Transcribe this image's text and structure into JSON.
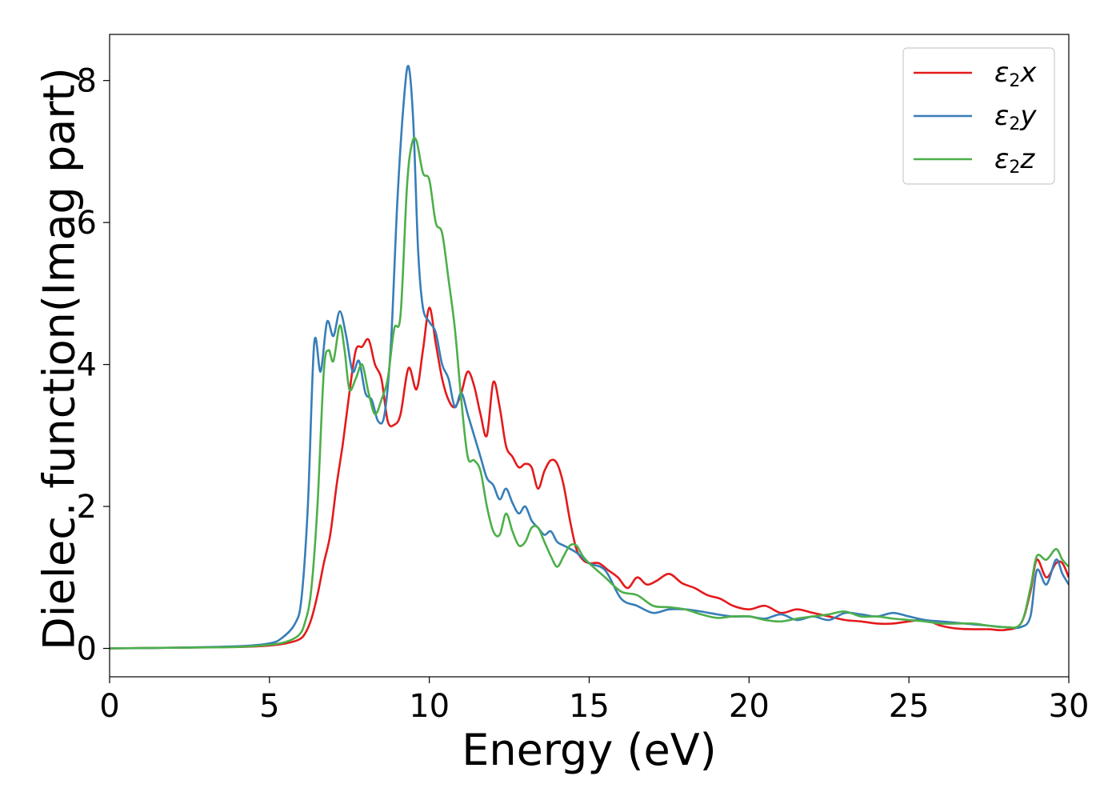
{
  "chart_data": {
    "type": "line",
    "xlabel": "Energy (eV)",
    "ylabel": "Dielec. function(Imag part)",
    "xlim": [
      0,
      30
    ],
    "ylim": [
      -0.4,
      8.65
    ],
    "xticks": [
      0,
      5,
      10,
      15,
      20,
      25,
      30
    ],
    "xtick_labels": [
      "0",
      "5",
      "10",
      "15",
      "20",
      "25",
      "30"
    ],
    "yticks": [
      0,
      2,
      4,
      6,
      8
    ],
    "ytick_labels": [
      "0",
      "2",
      "4",
      "6",
      "8"
    ],
    "grid": false,
    "legend_position": "top-right",
    "series": [
      {
        "name": "ε2x",
        "legend": {
          "base": "ε",
          "sub": "2",
          "var": "x"
        },
        "color": "#e41a1c",
        "x": [
          0,
          2,
          4,
          5,
          5.5,
          5.9,
          6.1,
          6.3,
          6.5,
          6.7,
          6.9,
          7.1,
          7.3,
          7.5,
          7.7,
          7.9,
          8.1,
          8.3,
          8.5,
          8.7,
          8.9,
          9.1,
          9.35,
          9.6,
          9.8,
          10.0,
          10.2,
          10.4,
          10.6,
          10.8,
          11.0,
          11.2,
          11.4,
          11.6,
          11.8,
          12.0,
          12.2,
          12.4,
          12.6,
          12.8,
          13.0,
          13.2,
          13.4,
          13.6,
          13.8,
          14.0,
          14.2,
          14.4,
          14.6,
          14.8,
          15.0,
          15.3,
          15.6,
          15.9,
          16.2,
          16.5,
          16.8,
          17.1,
          17.5,
          17.9,
          18.3,
          18.7,
          19.1,
          19.5,
          20.0,
          20.5,
          21.0,
          21.5,
          22.0,
          22.5,
          23.0,
          23.5,
          24.0,
          24.5,
          25.0,
          25.5,
          26.0,
          26.5,
          27.0,
          27.5,
          28.0,
          28.5,
          28.8,
          29.0,
          29.3,
          29.6,
          29.8,
          30.0
        ],
        "values": [
          0,
          0.01,
          0.02,
          0.04,
          0.07,
          0.12,
          0.2,
          0.4,
          0.75,
          1.2,
          1.6,
          2.3,
          2.9,
          3.6,
          4.2,
          4.25,
          4.35,
          4.0,
          3.8,
          3.2,
          3.15,
          3.3,
          3.95,
          3.65,
          4.2,
          4.8,
          4.3,
          3.8,
          3.5,
          3.4,
          3.6,
          3.9,
          3.7,
          3.3,
          3.0,
          3.75,
          3.4,
          2.85,
          2.7,
          2.55,
          2.6,
          2.55,
          2.25,
          2.5,
          2.65,
          2.6,
          2.3,
          1.8,
          1.4,
          1.25,
          1.2,
          1.2,
          1.1,
          1.0,
          0.85,
          1.0,
          0.9,
          0.95,
          1.05,
          0.92,
          0.85,
          0.75,
          0.7,
          0.6,
          0.55,
          0.6,
          0.5,
          0.55,
          0.5,
          0.45,
          0.4,
          0.38,
          0.35,
          0.35,
          0.38,
          0.4,
          0.32,
          0.28,
          0.27,
          0.27,
          0.26,
          0.35,
          0.8,
          1.25,
          1.0,
          1.2,
          1.2,
          1.0
        ]
      },
      {
        "name": "ε2y",
        "legend": {
          "base": "ε",
          "sub": "2",
          "var": "y"
        },
        "color": "#377eb8",
        "x": [
          0,
          2,
          4,
          5,
          5.4,
          5.8,
          6.0,
          6.2,
          6.4,
          6.6,
          6.8,
          7.0,
          7.2,
          7.4,
          7.6,
          7.8,
          8.0,
          8.2,
          8.4,
          8.6,
          8.8,
          9.0,
          9.2,
          9.35,
          9.5,
          9.65,
          9.8,
          10.0,
          10.2,
          10.4,
          10.6,
          10.8,
          11.0,
          11.2,
          11.4,
          11.6,
          11.8,
          12.0,
          12.2,
          12.4,
          12.6,
          12.8,
          13.0,
          13.2,
          13.4,
          13.6,
          13.8,
          14.0,
          14.2,
          14.6,
          15.0,
          15.5,
          16.0,
          16.5,
          17.0,
          17.5,
          18.0,
          18.5,
          19.0,
          19.5,
          20.0,
          20.5,
          21.0,
          21.5,
          22.0,
          22.5,
          23.0,
          23.5,
          24.0,
          24.5,
          25.0,
          25.5,
          26.0,
          26.5,
          27.0,
          27.5,
          28.0,
          28.5,
          28.8,
          29.0,
          29.3,
          29.6,
          29.8,
          30.0
        ],
        "values": [
          0,
          0.01,
          0.03,
          0.07,
          0.15,
          0.35,
          0.7,
          2.0,
          4.3,
          3.9,
          4.6,
          4.4,
          4.75,
          4.4,
          3.9,
          4.05,
          3.6,
          3.5,
          3.2,
          3.3,
          4.3,
          6.3,
          7.7,
          8.2,
          7.4,
          5.6,
          4.8,
          4.6,
          4.45,
          4.0,
          3.8,
          3.4,
          3.6,
          3.3,
          3.0,
          2.7,
          2.4,
          2.3,
          2.1,
          2.25,
          2.05,
          1.9,
          2.0,
          1.8,
          1.7,
          1.6,
          1.65,
          1.5,
          1.45,
          1.35,
          1.2,
          1.1,
          0.7,
          0.6,
          0.5,
          0.55,
          0.55,
          0.52,
          0.48,
          0.45,
          0.45,
          0.42,
          0.48,
          0.4,
          0.45,
          0.4,
          0.5,
          0.48,
          0.45,
          0.5,
          0.45,
          0.4,
          0.38,
          0.36,
          0.34,
          0.32,
          0.3,
          0.3,
          0.45,
          1.1,
          0.9,
          1.25,
          1.05,
          0.9
        ]
      },
      {
        "name": "ε2z",
        "legend": {
          "base": "ε",
          "sub": "2",
          "var": "z"
        },
        "color": "#4daf4a",
        "x": [
          0,
          2,
          4,
          5,
          5.5,
          5.9,
          6.1,
          6.3,
          6.5,
          6.7,
          6.85,
          7.0,
          7.2,
          7.35,
          7.5,
          7.7,
          7.9,
          8.1,
          8.3,
          8.5,
          8.7,
          8.9,
          9.1,
          9.3,
          9.45,
          9.6,
          9.8,
          10.0,
          10.2,
          10.4,
          10.6,
          10.8,
          11.0,
          11.2,
          11.4,
          11.6,
          11.8,
          12.0,
          12.2,
          12.4,
          12.6,
          12.8,
          13.0,
          13.2,
          13.4,
          13.6,
          13.8,
          14.0,
          14.2,
          14.4,
          14.6,
          14.8,
          15.0,
          15.5,
          16.0,
          16.5,
          17.0,
          17.5,
          18.0,
          18.5,
          19.0,
          19.5,
          20.0,
          20.5,
          21.0,
          21.5,
          22.0,
          22.5,
          23.0,
          23.5,
          24.0,
          24.5,
          25.0,
          25.5,
          26.0,
          26.5,
          27.0,
          27.5,
          28.0,
          28.5,
          28.8,
          29.0,
          29.3,
          29.6,
          29.8,
          30.0
        ],
        "values": [
          0,
          0.01,
          0.02,
          0.05,
          0.09,
          0.18,
          0.35,
          0.8,
          2.0,
          3.9,
          4.2,
          4.05,
          4.55,
          4.2,
          3.65,
          3.8,
          4.0,
          3.6,
          3.3,
          3.5,
          3.8,
          4.5,
          4.7,
          6.5,
          7.1,
          7.15,
          6.7,
          6.6,
          6.0,
          5.85,
          5.2,
          4.5,
          3.5,
          2.7,
          2.65,
          2.5,
          2.0,
          1.65,
          1.6,
          1.9,
          1.65,
          1.45,
          1.5,
          1.7,
          1.7,
          1.5,
          1.3,
          1.15,
          1.3,
          1.45,
          1.45,
          1.3,
          1.2,
          1.0,
          0.8,
          0.75,
          0.6,
          0.58,
          0.55,
          0.48,
          0.43,
          0.45,
          0.45,
          0.4,
          0.38,
          0.42,
          0.45,
          0.48,
          0.52,
          0.45,
          0.45,
          0.42,
          0.4,
          0.38,
          0.35,
          0.35,
          0.35,
          0.32,
          0.3,
          0.35,
          0.85,
          1.3,
          1.25,
          1.4,
          1.25,
          1.15
        ]
      }
    ]
  }
}
